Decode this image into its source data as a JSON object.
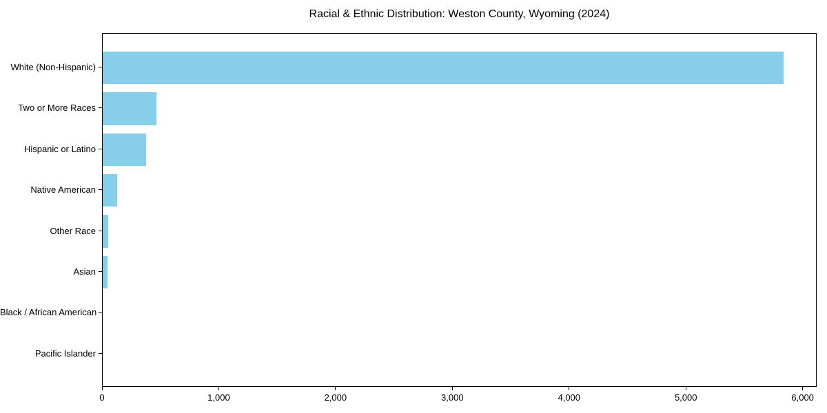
{
  "chart_data": {
    "type": "bar",
    "orientation": "horizontal",
    "title": "Racial & Ethnic Distribution: Weston County, Wyoming (2024)",
    "categories": [
      "White (Non-Hispanic)",
      "Two or More Races",
      "Hispanic or Latino",
      "Native American",
      "Other Race",
      "Asian",
      "Black / African American",
      "Pacific Islander"
    ],
    "values": [
      5830,
      460,
      370,
      125,
      45,
      40,
      0,
      0
    ],
    "bar_color": "#87CEEB",
    "text_color": "#000000",
    "spine_color": "#000000",
    "xlim": [
      0,
      6120
    ],
    "x_ticks": [
      0,
      1000,
      2000,
      3000,
      4000,
      5000,
      6000
    ],
    "x_tick_labels": [
      "0",
      "1,000",
      "2,000",
      "3,000",
      "4,000",
      "5,000",
      "6,000"
    ],
    "xlabel": "",
    "ylabel": "",
    "grid": false,
    "legend": false,
    "background": "#ffffff"
  }
}
